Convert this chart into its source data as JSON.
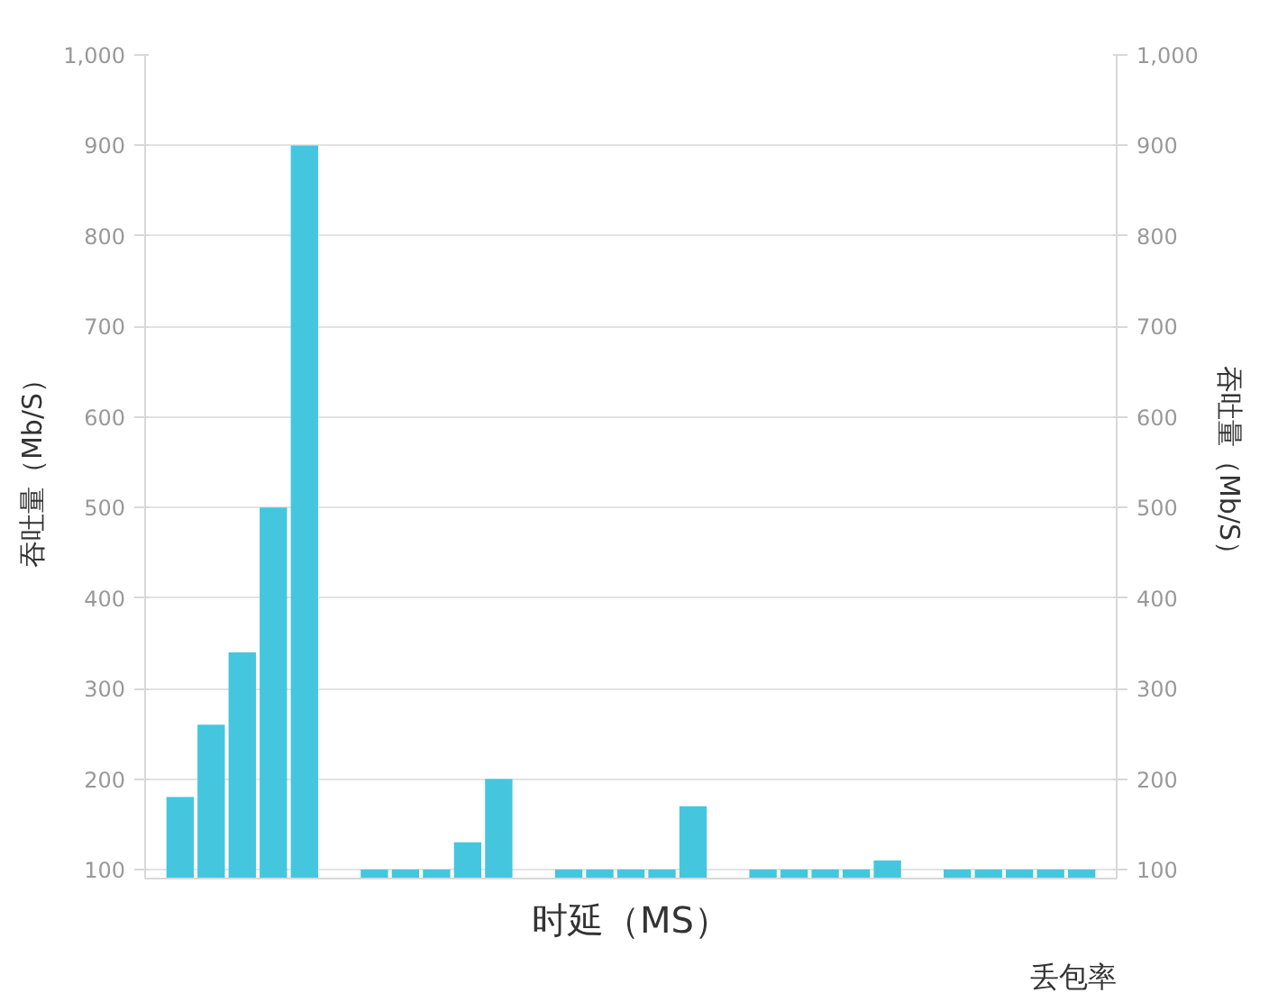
{
  "chart_data": {
    "type": "bar",
    "xlabel": "时延（MS）",
    "ylabel": "吞吐量（Mb/S）",
    "y2label": "吞吐量（Mb/S）",
    "annotations": [
      "丢包率"
    ],
    "categories": [
      null,
      null,
      null,
      null,
      null
    ],
    "series": [
      {
        "color": "#44c6df",
        "values": [
          180,
          100,
          100,
          100,
          100
        ]
      },
      {
        "color": "#44c6df",
        "values": [
          260,
          100,
          100,
          100,
          100
        ]
      },
      {
        "color": "#44c6df",
        "values": [
          340,
          100,
          100,
          100,
          100
        ]
      },
      {
        "color": "#44c6df",
        "values": [
          500,
          130,
          100,
          100,
          100
        ]
      },
      {
        "color": "#44c6df",
        "values": [
          900,
          200,
          170,
          110,
          100
        ]
      }
    ],
    "ylim": [
      90,
      1000
    ],
    "yticks": [
      100,
      200,
      300,
      400,
      500,
      600,
      700,
      800,
      900,
      {
        "value": 1000,
        "label": "1,000"
      }
    ],
    "y2lim": [
      90,
      1000
    ],
    "y2ticks": [
      100,
      200,
      300,
      400,
      500,
      600,
      700,
      800,
      900,
      {
        "value": 1000,
        "label": "1,000"
      }
    ],
    "grid": "y",
    "tick_labels": "y"
  }
}
